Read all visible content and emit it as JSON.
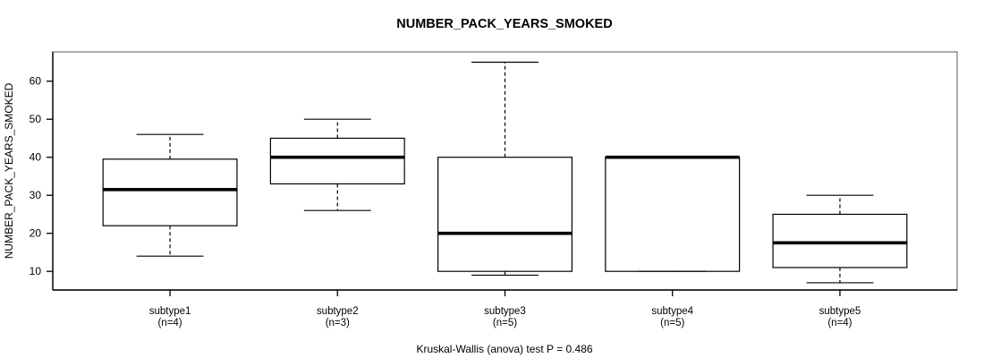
{
  "chart_data": {
    "type": "boxplot",
    "title": "NUMBER_PACK_YEARS_SMOKED",
    "ylabel": "NUMBER_PACK_YEARS_SMOKED",
    "footnote": "Kruskal-Wallis (anova) test P = 0.486",
    "p_value": 0.486,
    "ylim": [
      5.1,
      67.7
    ],
    "yticks": [
      10,
      20,
      30,
      40,
      50,
      60
    ],
    "grid": false,
    "legend": "none",
    "groups": [
      {
        "label": "subtype1",
        "sublabel": "(n=4)",
        "n": 4,
        "min": 14,
        "q1": 22,
        "median": 31.5,
        "q3": 39.5,
        "max": 46
      },
      {
        "label": "subtype2",
        "sublabel": "(n=3)",
        "n": 3,
        "min": 26,
        "q1": 33,
        "median": 40,
        "q3": 45,
        "max": 50
      },
      {
        "label": "subtype3",
        "sublabel": "(n=5)",
        "n": 5,
        "min": 9,
        "q1": 10,
        "median": 20,
        "q3": 40,
        "max": 65
      },
      {
        "label": "subtype4",
        "sublabel": "(n=5)",
        "n": 5,
        "min": 10,
        "q1": 10,
        "median": 40,
        "q3": 40,
        "max": 40
      },
      {
        "label": "subtype5",
        "sublabel": "(n=4)",
        "n": 4,
        "min": 7,
        "q1": 11,
        "median": 17.5,
        "q3": 25,
        "max": 30
      }
    ],
    "colors": {
      "box_border": "#000000",
      "median": "#000000",
      "whisker": "#000000",
      "frame": "#808080",
      "axis": "#000000",
      "box_fill": "#ffffff",
      "background": "#ffffff"
    }
  }
}
